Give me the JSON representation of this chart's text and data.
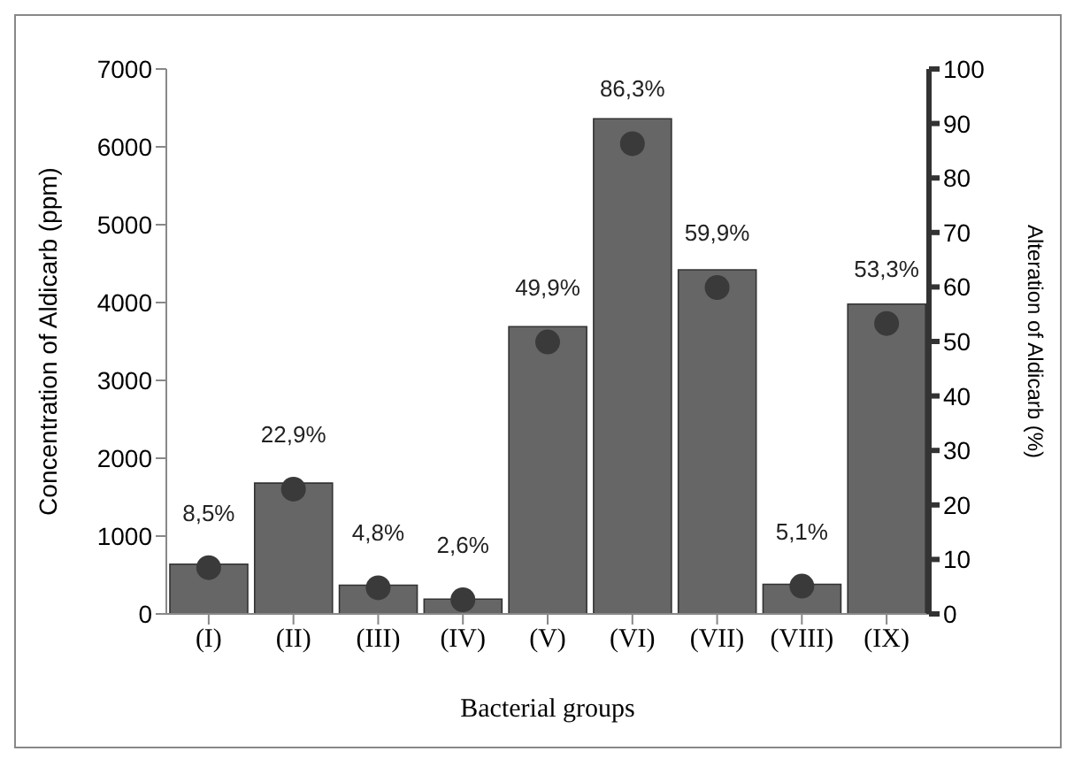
{
  "chart_data": {
    "type": "bar",
    "xlabel": "Bacterial groups",
    "ylabel": "Concentration of Aldicarb (ppm)",
    "y2label": "Alteration of Aldicarb (%)",
    "categories": [
      "(I)",
      "(II)",
      "(III)",
      "(IV)",
      "(V)",
      "(VI)",
      "(VII)",
      "(VIII)",
      "(IX)"
    ],
    "series": [
      {
        "color": "#666666",
        "values": [
          640,
          1680,
          370,
          190,
          3690,
          6360,
          4420,
          380,
          3980
        ]
      },
      {
        "type": "scatter",
        "axis": "y2",
        "color": "#3a3a3a",
        "marker": "circle",
        "values": [
          8.5,
          22.9,
          4.8,
          2.6,
          49.9,
          86.3,
          59.9,
          5.1,
          53.3
        ],
        "value_labels": [
          "8,5%",
          "22,9%",
          "4,8%",
          "2,6%",
          "49,9%",
          "86,3%",
          "59,9%",
          "5,1%",
          "53,3%"
        ]
      }
    ],
    "ylim": [
      0,
      7000
    ],
    "yticks": [
      0,
      1000,
      2000,
      3000,
      4000,
      5000,
      6000,
      7000
    ],
    "y2lim": [
      0,
      100
    ],
    "y2ticks": [
      0,
      10,
      20,
      30,
      40,
      50,
      60,
      70,
      80,
      90,
      100
    ],
    "grid": false
  }
}
